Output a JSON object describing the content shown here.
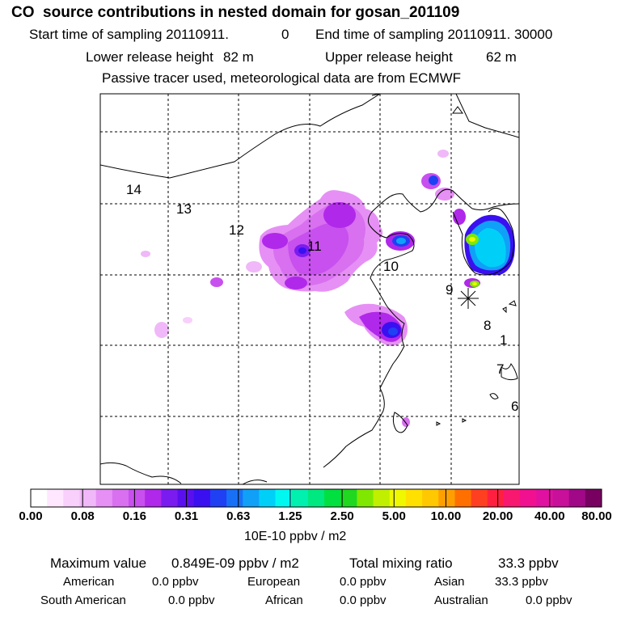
{
  "header": {
    "title": "CO  source contributions in nested domain for gosan_201109",
    "start_label": "Start time of sampling 20110911.",
    "start_suffix": "0",
    "end_label": "End time of sampling 20110911. 30000",
    "lower_label": "Lower release height",
    "lower_value": "82 m",
    "upper_label": "Upper release height",
    "upper_value": "62 m",
    "tracer_line": "Passive tracer used, meteorological data are from ECMWF"
  },
  "map": {
    "trajectory_labels": [
      "14",
      "13",
      "12",
      "11",
      "10",
      "9",
      "8",
      "1",
      "7",
      "6"
    ],
    "receptor_marker": "gosan-station-marker"
  },
  "colorbar": {
    "colors": [
      "#ffffff",
      "#ffe8ff",
      "#f8d0fb",
      "#f0b8f8",
      "#e690f5",
      "#d870f0",
      "#c850ee",
      "#b028ea",
      "#7a1cf0",
      "#5a10ee",
      "#3a10f0",
      "#2040f4",
      "#1870f6",
      "#10a0f8",
      "#00d0f8",
      "#00f8f0",
      "#00f0b0",
      "#00e880",
      "#00e040",
      "#20d820",
      "#80e800",
      "#c0f000",
      "#f0f800",
      "#ffe000",
      "#ffc800",
      "#ffa000",
      "#ff7000",
      "#ff4020",
      "#ff2040",
      "#f81870",
      "#f01090",
      "#e010a0",
      "#c8109a",
      "#a00888",
      "#780060"
    ],
    "tick_labels": [
      "0.00",
      "0.08",
      "0.16",
      "0.31",
      "0.63",
      "1.25",
      "2.50",
      "5.00",
      "10.00",
      "20.00",
      "40.00",
      "80.00"
    ],
    "units": "10E-10 ppbv / m2"
  },
  "footer": {
    "max_label": "Maximum value",
    "max_value": "0.849E-09 ppbv / m2",
    "total_label": "Total mixing ratio",
    "total_value": "33.3 ppbv",
    "regions": [
      {
        "name": "American",
        "value": "0.0 ppbv"
      },
      {
        "name": "European",
        "value": "0.0 ppbv"
      },
      {
        "name": "Asian",
        "value": "33.3 ppbv"
      },
      {
        "name": "South American",
        "value": "0.0 ppbv"
      },
      {
        "name": "African",
        "value": "0.0 ppbv"
      },
      {
        "name": "Australian",
        "value": "0.0 ppbv"
      }
    ]
  }
}
